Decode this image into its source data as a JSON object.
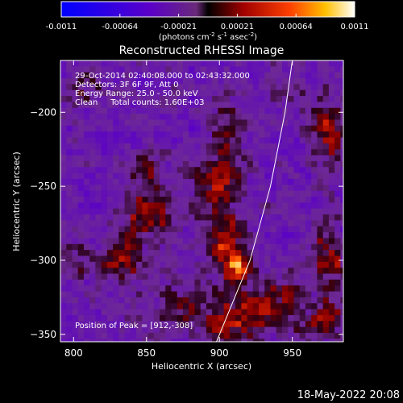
{
  "chart_data": {
    "type": "heatmap",
    "title": "Reconstructed RHESSI Image",
    "xlabel": "Heliocentric X (arcsec)",
    "ylabel": "Heliocentric Y (arcsec)",
    "xlim": [
      791,
      985
    ],
    "ylim": [
      -355,
      -165
    ],
    "xticks": [
      800,
      850,
      900,
      950
    ],
    "yticks": [
      -200,
      -250,
      -300,
      -350
    ],
    "colorbar": {
      "min": -0.0011,
      "max": 0.0011,
      "ticks": [
        "-0.0011",
        "-0.00064",
        "-0.00021",
        "0.00021",
        "0.00064",
        "0.0011"
      ],
      "unit_label_main": "(photons cm",
      "unit_label_sup1": "-2",
      "unit_label_mid1": " s",
      "unit_label_sup2": "-1",
      "unit_label_mid2": " asec",
      "unit_label_sup3": "-2",
      "unit_label_end": ")"
    },
    "info_lines": [
      "29-Oct-2014 02:40:08.000 to 02:43:32.000",
      "Detectors: 3F 6F 9F, Att 0",
      "Energy Range: 25.0 - 50.0 keV",
      "Clean     Total counts: 1.60E+03"
    ],
    "peak_label": "Position of Peak = [912,-308]",
    "peak": {
      "x": 912,
      "y": -308
    },
    "limb_points": [
      [
        950,
        -165
      ],
      [
        945,
        -200
      ],
      [
        935,
        -250
      ],
      [
        921,
        -300
      ],
      [
        898,
        -355
      ]
    ],
    "sources": [
      {
        "x": 912,
        "y": -306,
        "amp": 1.15,
        "sx": 4,
        "sy": 5
      },
      {
        "x": 905,
        "y": -290,
        "amp": 0.55,
        "sx": 10,
        "sy": 14
      },
      {
        "x": 898,
        "y": -250,
        "amp": 0.45,
        "sx": 12,
        "sy": 14
      },
      {
        "x": 905,
        "y": -215,
        "amp": 0.35,
        "sx": 8,
        "sy": 18
      },
      {
        "x": 850,
        "y": -270,
        "amp": 0.45,
        "sx": 14,
        "sy": 12
      },
      {
        "x": 835,
        "y": -300,
        "amp": 0.45,
        "sx": 12,
        "sy": 10
      },
      {
        "x": 850,
        "y": -240,
        "amp": 0.3,
        "sx": 10,
        "sy": 10
      },
      {
        "x": 875,
        "y": -330,
        "amp": 0.35,
        "sx": 16,
        "sy": 10
      },
      {
        "x": 930,
        "y": -330,
        "amp": 0.5,
        "sx": 16,
        "sy": 14
      },
      {
        "x": 905,
        "y": -345,
        "amp": 0.45,
        "sx": 12,
        "sy": 8
      },
      {
        "x": 975,
        "y": -215,
        "amp": 0.45,
        "sx": 8,
        "sy": 18
      },
      {
        "x": 975,
        "y": -300,
        "amp": 0.45,
        "sx": 8,
        "sy": 20
      },
      {
        "x": 970,
        "y": -340,
        "amp": 0.4,
        "sx": 10,
        "sy": 10
      },
      {
        "x": 805,
        "y": -185,
        "amp": 0.3,
        "sx": 10,
        "sy": 10
      },
      {
        "x": 800,
        "y": -300,
        "amp": 0.25,
        "sx": 8,
        "sy": 10
      },
      {
        "x": 950,
        "y": -185,
        "amp": 0.2,
        "sx": 10,
        "sy": 8
      }
    ]
  },
  "timestamp": "18-May-2022 20:08",
  "colors": {
    "background": "#000000",
    "text": "#ffffff",
    "limb": "#ffffff"
  }
}
